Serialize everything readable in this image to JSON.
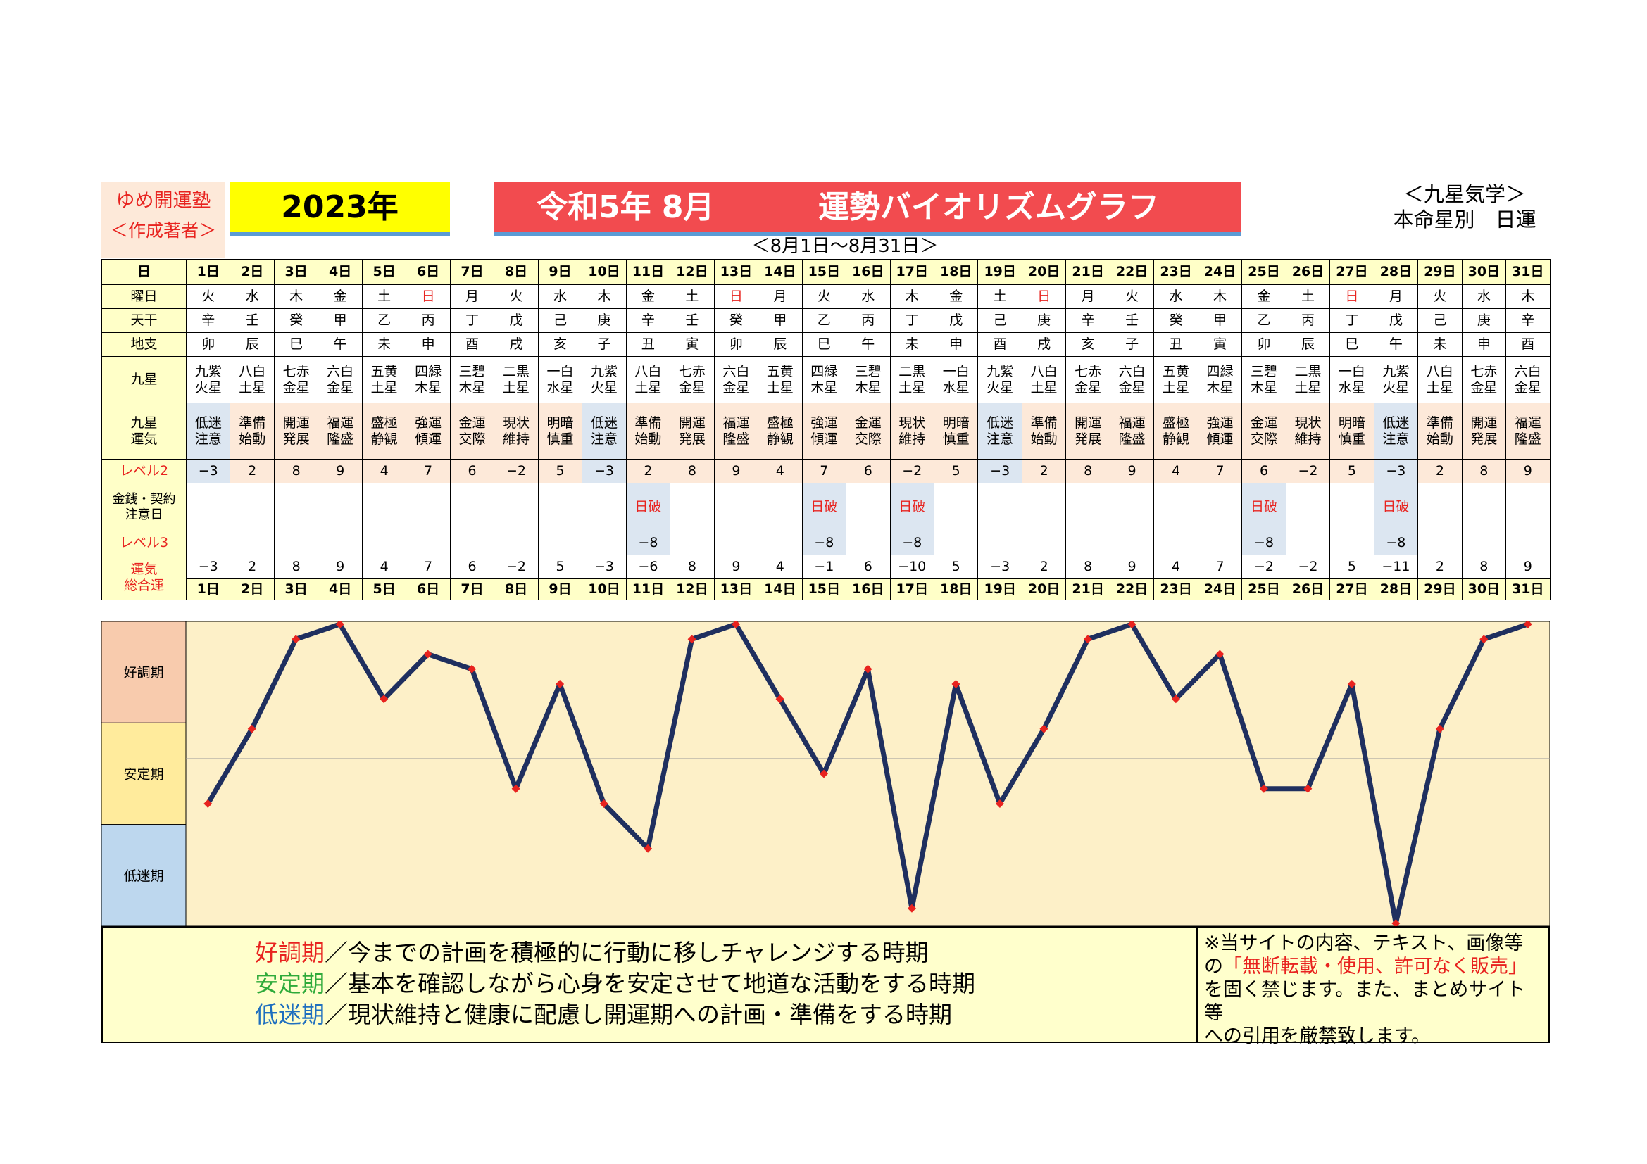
{
  "header": {
    "brand_name": "ゆめ開運塾",
    "brand_sub": "＜作成著者＞",
    "year": "2023年",
    "title_left": "令和5年 8月",
    "title_right": "運勢バイオリズムグラフ",
    "kyusei_line1": "＜九星気学＞",
    "kyusei_line2": "本命星別　日運",
    "range": "＜8月1日～8月31日＞"
  },
  "row_labels": {
    "day": "日",
    "weekday": "曜日",
    "tenkan": "天干",
    "chishi": "地支",
    "kyusei": "九星",
    "kyusei_unki": "九星\n運気",
    "level2": "レベル2",
    "money": "金銭・契約\n注意日",
    "level3": "レベル3",
    "total": "運気\n総合運"
  },
  "days": [
    "1日",
    "2日",
    "3日",
    "4日",
    "5日",
    "6日",
    "7日",
    "8日",
    "9日",
    "10日",
    "11日",
    "12日",
    "13日",
    "14日",
    "15日",
    "16日",
    "17日",
    "18日",
    "19日",
    "20日",
    "21日",
    "22日",
    "23日",
    "24日",
    "25日",
    "26日",
    "27日",
    "28日",
    "29日",
    "30日",
    "31日"
  ],
  "weekdays": [
    "火",
    "水",
    "木",
    "金",
    "土",
    "日",
    "月",
    "火",
    "水",
    "木",
    "金",
    "土",
    "日",
    "月",
    "火",
    "水",
    "木",
    "金",
    "土",
    "日",
    "月",
    "火",
    "水",
    "木",
    "金",
    "土",
    "日",
    "月",
    "火",
    "水",
    "木"
  ],
  "tenkan": [
    "辛",
    "壬",
    "癸",
    "甲",
    "乙",
    "丙",
    "丁",
    "戊",
    "己",
    "庚",
    "辛",
    "壬",
    "癸",
    "甲",
    "乙",
    "丙",
    "丁",
    "戊",
    "己",
    "庚",
    "辛",
    "壬",
    "癸",
    "甲",
    "乙",
    "丙",
    "丁",
    "戊",
    "己",
    "庚",
    "辛"
  ],
  "chishi": [
    "卯",
    "辰",
    "巳",
    "午",
    "未",
    "申",
    "酉",
    "戌",
    "亥",
    "子",
    "丑",
    "寅",
    "卯",
    "辰",
    "巳",
    "午",
    "未",
    "申",
    "酉",
    "戌",
    "亥",
    "子",
    "丑",
    "寅",
    "卯",
    "辰",
    "巳",
    "午",
    "未",
    "申",
    "酉"
  ],
  "kyusei": [
    "九紫\n火星",
    "八白\n土星",
    "七赤\n金星",
    "六白\n金星",
    "五黄\n土星",
    "四緑\n木星",
    "三碧\n木星",
    "二黒\n土星",
    "一白\n水星",
    "九紫\n火星",
    "八白\n土星",
    "七赤\n金星",
    "六白\n金星",
    "五黄\n土星",
    "四緑\n木星",
    "三碧\n木星",
    "二黒\n土星",
    "一白\n水星",
    "九紫\n火星",
    "八白\n土星",
    "七赤\n金星",
    "六白\n金星",
    "五黄\n土星",
    "四緑\n木星",
    "三碧\n木星",
    "二黒\n土星",
    "一白\n水星",
    "九紫\n火星",
    "八白\n土星",
    "七赤\n金星",
    "六白\n金星"
  ],
  "kyusei_unki": [
    "低迷\n注意",
    "準備\n始動",
    "開運\n発展",
    "福運\n隆盛",
    "盛極\n静観",
    "強運\n傾運",
    "金運\n交際",
    "現状\n維持",
    "明暗\n慎重",
    "低迷\n注意",
    "準備\n始動",
    "開運\n発展",
    "福運\n隆盛",
    "盛極\n静観",
    "強運\n傾運",
    "金運\n交際",
    "現状\n維持",
    "明暗\n慎重",
    "低迷\n注意",
    "準備\n始動",
    "開運\n発展",
    "福運\n隆盛",
    "盛極\n静観",
    "強運\n傾運",
    "金運\n交際",
    "現状\n維持",
    "明暗\n慎重",
    "低迷\n注意",
    "準備\n始動",
    "開運\n発展",
    "福運\n隆盛"
  ],
  "level2": [
    "−3",
    "2",
    "8",
    "9",
    "4",
    "7",
    "6",
    "−2",
    "5",
    "−3",
    "2",
    "8",
    "9",
    "4",
    "7",
    "6",
    "−2",
    "5",
    "−3",
    "2",
    "8",
    "9",
    "4",
    "7",
    "6",
    "−2",
    "5",
    "−3",
    "2",
    "8",
    "9"
  ],
  "money": [
    "",
    "",
    "",
    "",
    "",
    "",
    "",
    "",
    "",
    "",
    "日破",
    "",
    "",
    "",
    "日破",
    "",
    "日破",
    "",
    "",
    "",
    "",
    "",
    "",
    "",
    "日破",
    "",
    "",
    "日破",
    "",
    "",
    ""
  ],
  "level3": [
    "",
    "",
    "",
    "",
    "",
    "",
    "",
    "",
    "",
    "",
    "−8",
    "",
    "",
    "",
    "−8",
    "",
    "−8",
    "",
    "",
    "",
    "",
    "",
    "",
    "",
    "−8",
    "",
    "",
    "−8",
    "",
    "",
    ""
  ],
  "total": [
    "−3",
    "2",
    "8",
    "9",
    "4",
    "7",
    "6",
    "−2",
    "5",
    "−3",
    "−6",
    "8",
    "9",
    "4",
    "−1",
    "6",
    "−10",
    "5",
    "−3",
    "2",
    "8",
    "9",
    "4",
    "7",
    "−2",
    "−2",
    "5",
    "−11",
    "2",
    "8",
    "9"
  ],
  "chart_data": {
    "type": "line",
    "x": [
      "1日",
      "2日",
      "3日",
      "4日",
      "5日",
      "6日",
      "7日",
      "8日",
      "9日",
      "10日",
      "11日",
      "12日",
      "13日",
      "14日",
      "15日",
      "16日",
      "17日",
      "18日",
      "19日",
      "20日",
      "21日",
      "22日",
      "23日",
      "24日",
      "25日",
      "26日",
      "27日",
      "28日",
      "29日",
      "30日",
      "31日"
    ],
    "series": [
      {
        "values": [
          -3,
          2,
          8,
          9,
          4,
          7,
          6,
          -2,
          5,
          -3,
          -6,
          8,
          9,
          4,
          -1,
          6,
          -10,
          5,
          -3,
          2,
          8,
          9,
          4,
          7,
          -2,
          -2,
          5,
          -11,
          2,
          8,
          9
        ]
      }
    ],
    "bands": [
      "好調期",
      "安定期",
      "低迷期"
    ],
    "ylim": [
      -11,
      9
    ],
    "line_color": "#1f2f5f",
    "marker_color": "#e8231f"
  },
  "legend": {
    "good_label": "好調期",
    "good_text": "／今までの計画を積極的に行動に移しチャレンジする時期",
    "stable_label": "安定期",
    "stable_text": "／基本を確認しながら心身を安定させて地道な活動をする時期",
    "low_label": "低迷期",
    "low_text": "／現状維持と健康に配慮し開運期への計画・準備をする時期",
    "good_color": "#e8231f",
    "stable_color": "#2eaa3a",
    "low_color": "#1f6fbf"
  },
  "notice": {
    "line1": "※当サイトの内容、テキスト、画像等",
    "line2_pre": "の",
    "line2_red": "「無断転載・使用、許可なく販売」",
    "line3": "を固く禁じます。また、まとめサイト等",
    "line4": "への引用を厳禁致します。"
  }
}
